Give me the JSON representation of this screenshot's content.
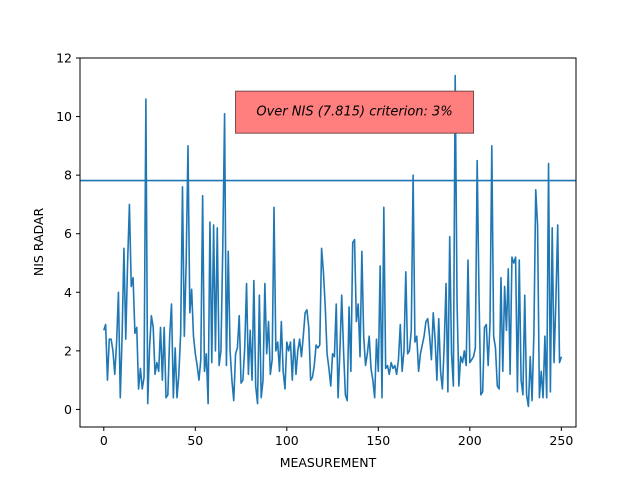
{
  "chart_data": {
    "type": "line",
    "title": "",
    "xlabel": "MEASUREMENT",
    "ylabel": "NIS RADAR",
    "xlim": [
      -13,
      258
    ],
    "ylim": [
      -0.6,
      12
    ],
    "xticks": [
      0,
      50,
      100,
      150,
      200,
      250
    ],
    "yticks": [
      0,
      2,
      4,
      6,
      8,
      10,
      12
    ],
    "grid": false,
    "legend": "none",
    "line_color": "#1f77b4",
    "reference_line": {
      "y": 7.815,
      "color": "#1f77b4"
    },
    "annotation": {
      "text": "Over NIS (7.815) criterion: 3%",
      "x": 137,
      "y": 10.15,
      "box_color": "#ff7f7f"
    },
    "series": [
      {
        "values": [
          2.7,
          2.9,
          1.0,
          2.4,
          2.4,
          2.0,
          1.2,
          2.3,
          4.0,
          0.4,
          2.5,
          5.5,
          2.4,
          5.0,
          7.0,
          4.2,
          4.5,
          2.6,
          2.8,
          0.7,
          1.4,
          0.7,
          1.1,
          10.6,
          0.2,
          2.1,
          3.2,
          2.8,
          1.2,
          1.6,
          1.3,
          2.8,
          1.0,
          2.8,
          0.4,
          0.5,
          2.5,
          3.6,
          0.4,
          2.1,
          0.4,
          1.2,
          2.6,
          7.6,
          2.5,
          5.0,
          9.0,
          3.3,
          4.1,
          2.5,
          1.9,
          1.5,
          1.0,
          1.7,
          7.3,
          1.3,
          1.9,
          0.2,
          6.4,
          1.6,
          6.3,
          2.0,
          6.2,
          1.5,
          2.0,
          5.5,
          10.1,
          1.5,
          5.4,
          2.0,
          1.0,
          0.3,
          1.9,
          2.1,
          3.2,
          0.9,
          1.0,
          2.1,
          4.3,
          1.2,
          2.7,
          1.0,
          4.4,
          0.8,
          0.2,
          3.9,
          0.4,
          1.0,
          4.3,
          1.9,
          3.0,
          1.2,
          1.7,
          6.9,
          2.0,
          2.3,
          1.3,
          3.0,
          1.3,
          0.7,
          2.3,
          2.0,
          2.3,
          1.0,
          2.4,
          1.2,
          2.0,
          2.4,
          1.8,
          2.5,
          3.3,
          3.4,
          2.8,
          1.0,
          1.1,
          1.5,
          2.2,
          2.1,
          2.2,
          5.5,
          4.7,
          3.5,
          1.9,
          1.4,
          0.8,
          1.9,
          1.8,
          3.6,
          0.4,
          2.0,
          3.9,
          2.0,
          0.5,
          0.3,
          3.5,
          1.3,
          5.7,
          5.8,
          3.0,
          3.6,
          1.8,
          5.4,
          2.5,
          1.5,
          1.9,
          2.5,
          1.4,
          1.0,
          0.4,
          2.4,
          1.3,
          4.9,
          0.4,
          6.9,
          1.4,
          1.5,
          1.2,
          1.6,
          1.4,
          1.5,
          1.2,
          1.7,
          2.9,
          1.3,
          2.0,
          4.7,
          1.9,
          2.0,
          2.7,
          8.0,
          2.3,
          2.5,
          1.3,
          1.9,
          2.2,
          2.5,
          3.0,
          3.1,
          2.5,
          1.7,
          3.3,
          2.4,
          1.0,
          3.1,
          1.3,
          0.7,
          2.2,
          4.3,
          0.6,
          5.9,
          1.9,
          0.8,
          11.4,
          3.7,
          0.8,
          1.8,
          1.6,
          2.0,
          1.5,
          5.1,
          1.6,
          1.7,
          1.8,
          2.1,
          8.5,
          3.9,
          0.5,
          0.6,
          2.8,
          2.9,
          1.5,
          2.9,
          9.0,
          2.5,
          2.1,
          0.8,
          0.7,
          4.5,
          1.3,
          4.2,
          2.7,
          4.8,
          1.2,
          5.2,
          5.0,
          5.2,
          0.6,
          5.1,
          1.0,
          0.5,
          3.9,
          0.5,
          0.1,
          1.8,
          0.3,
          2.6,
          7.5,
          6.3,
          0.4,
          1.3,
          0.4,
          2.5,
          0.4,
          8.4,
          0.6,
          6.2,
          1.6,
          3.7,
          6.3,
          1.6,
          1.8
        ]
      }
    ]
  }
}
